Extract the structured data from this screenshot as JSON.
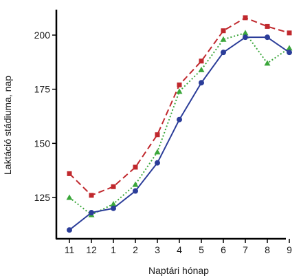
{
  "chart_data": {
    "type": "line",
    "title": "",
    "xlabel": "Naptári hónap",
    "ylabel": "Laktáció stádiuma, nap",
    "categories": [
      "11",
      "12",
      "1",
      "2",
      "3",
      "4",
      "5",
      "6",
      "7",
      "8",
      "9"
    ],
    "yticks": [
      125,
      150,
      175,
      200
    ],
    "ylim": [
      106,
      212
    ],
    "grid": false,
    "legend": "none",
    "series": [
      {
        "color": "#c0282d",
        "line_style": "dashed",
        "marker": "square",
        "values": [
          136,
          126,
          130,
          139,
          154,
          177,
          188,
          202,
          208,
          204,
          201
        ]
      },
      {
        "color": "#3aa63a",
        "line_style": "dotted",
        "marker": "triangle",
        "values": [
          125,
          117,
          122,
          131,
          146,
          174,
          184,
          198,
          201,
          187,
          194
        ]
      },
      {
        "color": "#2b3d99",
        "line_style": "solid",
        "marker": "circle",
        "values": [
          110,
          118,
          120,
          128,
          141,
          161,
          178,
          192,
          199,
          199,
          192
        ]
      }
    ]
  }
}
